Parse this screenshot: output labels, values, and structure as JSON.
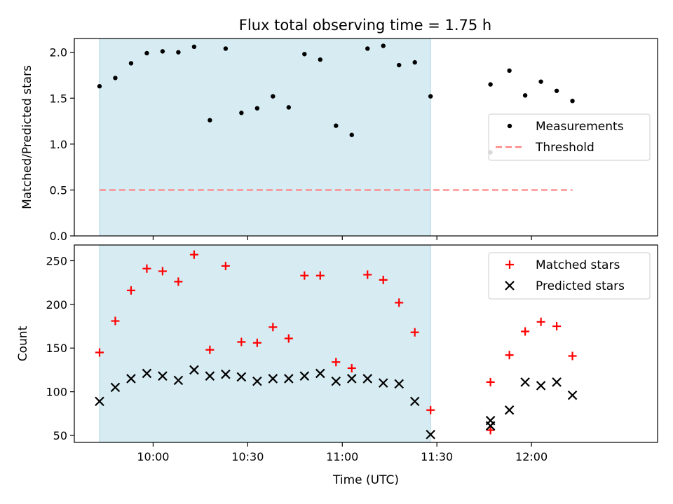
{
  "figure": {
    "title": "Flux total observing time = 1.75 h",
    "xlabel": "Time (UTC)"
  },
  "colors": {
    "shade": "#add8e6",
    "threshold": "#ff7f7f",
    "matched": "#ff0000",
    "predicted": "#000000",
    "measurements": "#000000"
  },
  "chart_data": [
    {
      "type": "scatter",
      "panel": "top",
      "title": "Flux total observing time = 1.75 h",
      "ylabel": "Matched/Predicted stars",
      "xlim": [
        "09:35",
        "12:40"
      ],
      "ylim": [
        0,
        2.15
      ],
      "yticks": [
        0.0,
        0.5,
        1.0,
        1.5,
        2.0
      ],
      "ytick_labels": [
        "0.0",
        "0.5",
        "1.0",
        "1.5",
        "2.0"
      ],
      "legend": "right",
      "shaded_span": [
        "09:43",
        "11:28"
      ],
      "series": [
        {
          "name": "Measurements",
          "marker": "dot",
          "x": [
            "09:43",
            "09:48",
            "09:53",
            "09:58",
            "10:03",
            "10:08",
            "10:13",
            "10:18",
            "10:23",
            "10:28",
            "10:33",
            "10:38",
            "10:43",
            "10:48",
            "10:53",
            "10:58",
            "11:03",
            "11:08",
            "11:13",
            "11:18",
            "11:23",
            "11:28",
            "11:47",
            "11:53",
            "11:58",
            "12:03",
            "12:08",
            "12:13",
            "11:47"
          ],
          "y": [
            1.63,
            1.72,
            1.88,
            1.99,
            2.01,
            2.0,
            2.06,
            1.26,
            2.04,
            1.34,
            1.39,
            1.52,
            1.4,
            1.98,
            1.92,
            1.2,
            1.1,
            2.04,
            2.07,
            1.86,
            1.89,
            1.52,
            1.65,
            1.8,
            1.53,
            1.68,
            1.58,
            1.47,
            0.91
          ]
        },
        {
          "name": "Threshold",
          "line": "dashed",
          "x": [
            "09:43",
            "12:13"
          ],
          "y": [
            0.5,
            0.5
          ]
        }
      ]
    },
    {
      "type": "scatter",
      "panel": "bottom",
      "ylabel": "Count",
      "xlabel": "Time (UTC)",
      "xlim": [
        "09:35",
        "12:40"
      ],
      "ylim": [
        42,
        268
      ],
      "yticks": [
        50,
        100,
        150,
        200,
        250
      ],
      "ytick_labels": [
        "50",
        "100",
        "150",
        "200",
        "250"
      ],
      "xticks": [
        "10:00",
        "10:30",
        "11:00",
        "11:30",
        "12:00"
      ],
      "xtick_labels": [
        "10:00",
        "10:30",
        "11:00",
        "11:30",
        "12:00"
      ],
      "legend": "top-right",
      "shaded_span": [
        "09:43",
        "11:28"
      ],
      "series": [
        {
          "name": "Matched stars",
          "marker": "plus",
          "x": [
            "09:43",
            "09:48",
            "09:53",
            "09:58",
            "10:03",
            "10:08",
            "10:13",
            "10:18",
            "10:23",
            "10:28",
            "10:33",
            "10:38",
            "10:43",
            "10:48",
            "10:53",
            "10:58",
            "11:03",
            "11:08",
            "11:13",
            "11:18",
            "11:23",
            "11:28",
            "11:47",
            "11:47",
            "11:53",
            "11:58",
            "12:03",
            "12:08",
            "12:13"
          ],
          "y": [
            145,
            181,
            216,
            241,
            238,
            226,
            257,
            148,
            244,
            157,
            156,
            174,
            161,
            233,
            233,
            134,
            127,
            234,
            228,
            202,
            168,
            79,
            56,
            111,
            142,
            169,
            180,
            175,
            141
          ]
        },
        {
          "name": "Predicted stars",
          "marker": "x",
          "x": [
            "09:43",
            "09:48",
            "09:53",
            "09:58",
            "10:03",
            "10:08",
            "10:13",
            "10:18",
            "10:23",
            "10:28",
            "10:33",
            "10:38",
            "10:43",
            "10:48",
            "10:53",
            "10:58",
            "11:03",
            "11:08",
            "11:13",
            "11:18",
            "11:23",
            "11:28",
            "11:47",
            "11:47",
            "11:53",
            "11:58",
            "12:03",
            "12:08",
            "12:13"
          ],
          "y": [
            89,
            105,
            115,
            121,
            118,
            113,
            125,
            118,
            120,
            117,
            112,
            115,
            115,
            118,
            121,
            112,
            115,
            115,
            110,
            109,
            89,
            51,
            61,
            67,
            79,
            111,
            107,
            111,
            96
          ]
        }
      ]
    }
  ]
}
